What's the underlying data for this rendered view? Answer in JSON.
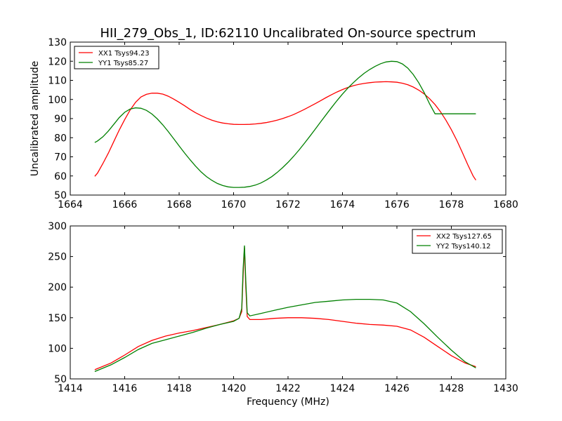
{
  "figure": {
    "title": "HII_279_Obs_1, ID:62110 Uncalibrated On-source spectrum",
    "ylabel": "Uncalibrated amplitude",
    "xlabel": "Frequency (MHz)"
  },
  "chart_data": [
    {
      "type": "line",
      "grid": false,
      "legend": "top-left",
      "xlim": [
        1664,
        1680
      ],
      "ylim": [
        50,
        130
      ],
      "xticks": [
        1664,
        1666,
        1668,
        1670,
        1672,
        1674,
        1676,
        1678,
        1680
      ],
      "yticks": [
        50,
        60,
        70,
        80,
        90,
        100,
        110,
        120,
        130
      ],
      "series": [
        {
          "name": "XX1 Tsys94.23",
          "color": "#ff0000",
          "x": [
            1664.9,
            1665.0,
            1665.2,
            1665.4,
            1665.6,
            1665.8,
            1666.0,
            1666.2,
            1666.4,
            1666.6,
            1666.8,
            1667.0,
            1667.2,
            1667.4,
            1667.6,
            1667.8,
            1668.0,
            1668.2,
            1668.4,
            1668.6,
            1668.8,
            1669.0,
            1669.2,
            1669.4,
            1669.6,
            1669.8,
            1670.0,
            1670.2,
            1670.4,
            1670.6,
            1670.8,
            1671.0,
            1671.2,
            1671.4,
            1671.6,
            1671.8,
            1672.0,
            1672.2,
            1672.4,
            1672.6,
            1672.8,
            1673.0,
            1673.2,
            1673.4,
            1673.6,
            1673.8,
            1674.0,
            1674.2,
            1674.4,
            1674.6,
            1674.8,
            1675.0,
            1675.2,
            1675.4,
            1675.6,
            1675.8,
            1676.0,
            1676.2,
            1676.4,
            1676.6,
            1676.8,
            1677.0,
            1677.2,
            1677.4,
            1677.6,
            1677.8,
            1678.0,
            1678.2,
            1678.4,
            1678.6,
            1678.8,
            1678.9
          ],
          "y": [
            59.8,
            61.5,
            66.5,
            72.0,
            78.0,
            84.0,
            89.5,
            94.5,
            98.5,
            101.3,
            102.7,
            103.3,
            103.3,
            102.8,
            101.7,
            100.2,
            98.5,
            96.7,
            94.8,
            93.1,
            91.6,
            90.3,
            89.2,
            88.3,
            87.7,
            87.3,
            87.0,
            86.9,
            86.9,
            87.0,
            87.2,
            87.5,
            87.9,
            88.5,
            89.2,
            90.0,
            91.0,
            92.1,
            93.4,
            94.8,
            96.3,
            97.8,
            99.4,
            101.0,
            102.5,
            103.9,
            105.2,
            106.3,
            107.2,
            107.9,
            108.4,
            108.8,
            109.1,
            109.2,
            109.3,
            109.2,
            109.0,
            108.5,
            107.7,
            106.5,
            104.9,
            102.9,
            100.4,
            97.3,
            93.6,
            89.2,
            84.2,
            78.6,
            72.4,
            66.0,
            60.0,
            57.8
          ]
        },
        {
          "name": "YY1 Tsys85.27",
          "color": "#008000",
          "x": [
            1664.9,
            1665.0,
            1665.2,
            1665.4,
            1665.6,
            1665.8,
            1666.0,
            1666.2,
            1666.4,
            1666.6,
            1666.8,
            1667.0,
            1667.2,
            1667.4,
            1667.6,
            1667.8,
            1668.0,
            1668.2,
            1668.4,
            1668.6,
            1668.8,
            1669.0,
            1669.2,
            1669.4,
            1669.6,
            1669.8,
            1670.0,
            1670.2,
            1670.4,
            1670.6,
            1670.8,
            1671.0,
            1671.2,
            1671.4,
            1671.6,
            1671.8,
            1672.0,
            1672.2,
            1672.4,
            1672.6,
            1672.8,
            1673.0,
            1673.2,
            1673.4,
            1673.6,
            1673.8,
            1674.0,
            1674.2,
            1674.4,
            1674.6,
            1674.8,
            1675.0,
            1675.2,
            1675.4,
            1675.6,
            1675.8,
            1676.0,
            1676.2,
            1676.4,
            1676.6,
            1676.8,
            1677.0,
            1677.2,
            1677.4,
            1677.6,
            1677.8,
            1678.0,
            1678.2,
            1678.4,
            1678.6,
            1678.8,
            1678.9
          ],
          "y": [
            77.5,
            78.3,
            80.5,
            83.5,
            87.0,
            90.5,
            93.3,
            95.0,
            95.6,
            95.4,
            94.3,
            92.4,
            89.8,
            86.7,
            83.2,
            79.5,
            75.7,
            72.0,
            68.5,
            65.2,
            62.2,
            59.7,
            57.7,
            56.1,
            55.0,
            54.3,
            54.0,
            54.0,
            54.1,
            54.5,
            55.2,
            56.3,
            57.8,
            59.6,
            61.8,
            64.3,
            67.1,
            70.2,
            73.5,
            77.0,
            80.7,
            84.5,
            88.3,
            92.1,
            95.8,
            99.4,
            102.8,
            106.0,
            108.8,
            111.4,
            113.7,
            115.7,
            117.3,
            118.7,
            119.6,
            120.0,
            119.8,
            118.6,
            116.4,
            113.1,
            108.8,
            103.6,
            97.7,
            92.5,
            92.5,
            92.5,
            92.5,
            92.5,
            92.5,
            92.5,
            92.5,
            92.5
          ]
        }
      ]
    },
    {
      "type": "line",
      "grid": false,
      "legend": "top-right",
      "xlim": [
        1414,
        1430
      ],
      "ylim": [
        50,
        300
      ],
      "xticks": [
        1414,
        1416,
        1418,
        1420,
        1422,
        1424,
        1426,
        1428,
        1430
      ],
      "yticks": [
        50,
        100,
        150,
        200,
        250,
        300
      ],
      "series": [
        {
          "name": "XX2 Tsys127.65",
          "color": "#ff0000",
          "x": [
            1414.9,
            1415.5,
            1416.0,
            1416.5,
            1417.0,
            1417.5,
            1418.0,
            1418.5,
            1419.0,
            1419.5,
            1420.0,
            1420.2,
            1420.3,
            1420.35,
            1420.4,
            1420.45,
            1420.5,
            1420.6,
            1421.0,
            1421.5,
            1422.0,
            1422.5,
            1423.0,
            1423.5,
            1424.0,
            1424.5,
            1425.0,
            1425.5,
            1426.0,
            1426.5,
            1427.0,
            1427.5,
            1428.0,
            1428.5,
            1428.9
          ],
          "y": [
            65.0,
            76.0,
            89.0,
            103.0,
            113.0,
            120.0,
            125.0,
            129.0,
            134.0,
            139.0,
            145.0,
            149.0,
            160.0,
            220.0,
            265.0,
            200.0,
            152.0,
            147.0,
            147.0,
            149.0,
            150.0,
            150.0,
            149.0,
            147.0,
            144.0,
            141.0,
            139.0,
            138.0,
            136.0,
            130.0,
            118.0,
            103.0,
            88.0,
            76.0,
            70.0
          ]
        },
        {
          "name": "YY2 Tsys140.12",
          "color": "#008000",
          "x": [
            1414.9,
            1415.5,
            1416.0,
            1416.5,
            1417.0,
            1417.5,
            1418.0,
            1418.5,
            1419.0,
            1419.5,
            1420.0,
            1420.2,
            1420.3,
            1420.35,
            1420.4,
            1420.45,
            1420.5,
            1420.6,
            1421.0,
            1421.5,
            1422.0,
            1422.5,
            1423.0,
            1423.5,
            1424.0,
            1424.5,
            1425.0,
            1425.5,
            1426.0,
            1426.5,
            1427.0,
            1427.5,
            1428.0,
            1428.5,
            1428.9
          ],
          "y": [
            62.0,
            73.0,
            85.0,
            98.0,
            108.0,
            114.0,
            120.0,
            126.0,
            133.0,
            139.0,
            144.0,
            149.0,
            165.0,
            230.0,
            268.0,
            210.0,
            158.0,
            153.0,
            157.0,
            162.0,
            167.0,
            171.0,
            175.0,
            177.0,
            179.0,
            180.0,
            180.0,
            179.0,
            174.0,
            160.0,
            140.0,
            118.0,
            97.0,
            78.0,
            68.0
          ]
        }
      ]
    }
  ]
}
